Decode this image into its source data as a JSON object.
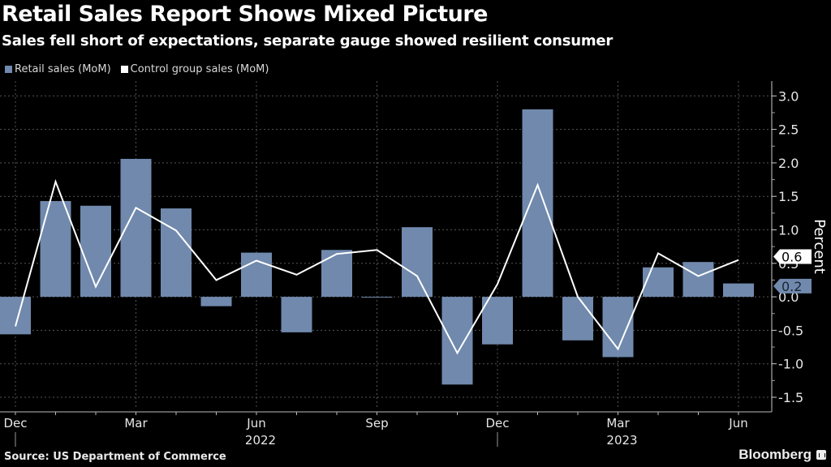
{
  "header": {
    "title": "Retail Sales Report Shows Mixed Picture",
    "subtitle": "Sales fell short of expectations, separate gauge showed resilient consumer"
  },
  "legend": [
    {
      "label": "Retail sales (MoM)",
      "color": "#7089ad"
    },
    {
      "label": "Control group sales (MoM)",
      "color": "#ffffff"
    }
  ],
  "footer": {
    "source": "Source: US Department of Commerce",
    "brand": "Bloomberg"
  },
  "chart_data": {
    "type": "bar",
    "title": "Retail Sales Report Shows Mixed Picture",
    "subtitle": "Sales fell short of expectations, separate gauge showed resilient consumer",
    "xlabel": "",
    "ylabel": "Percent",
    "ylim": [
      -1.5,
      3.0
    ],
    "yticks": [
      "3.0",
      "2.5",
      "2.0",
      "1.5",
      "1.0",
      "0.5",
      "0.0",
      "-0.5",
      "-1.0",
      "-1.5"
    ],
    "ytick_values": [
      3.0,
      2.5,
      2.0,
      1.5,
      1.0,
      0.5,
      0.0,
      -0.5,
      -1.0,
      -1.5
    ],
    "grid": true,
    "legend_position": "top-left",
    "categories": [
      "Dec 2021",
      "Jan 2022",
      "Feb 2022",
      "Mar 2022",
      "Apr 2022",
      "May 2022",
      "Jun 2022",
      "Jul 2022",
      "Aug 2022",
      "Sep 2022",
      "Oct 2022",
      "Nov 2022",
      "Dec 2022",
      "Jan 2023",
      "Feb 2023",
      "Mar 2023",
      "Apr 2023",
      "May 2023",
      "Jun 2023"
    ],
    "xtick_labels": [
      {
        "index": 0,
        "label": "Dec",
        "year": ""
      },
      {
        "index": 3,
        "label": "Mar",
        "year": ""
      },
      {
        "index": 6,
        "label": "Jun",
        "year": "2022"
      },
      {
        "index": 9,
        "label": "Sep",
        "year": ""
      },
      {
        "index": 12,
        "label": "Dec",
        "year": ""
      },
      {
        "index": 15,
        "label": "Mar",
        "year": "2023"
      },
      {
        "index": 18,
        "label": "Jun",
        "year": ""
      }
    ],
    "year_dividers": [
      0,
      12
    ],
    "series": [
      {
        "name": "Retail sales (MoM)",
        "type": "bar",
        "color": "#7089ad",
        "values": [
          -0.56,
          1.43,
          1.36,
          2.06,
          1.32,
          -0.14,
          0.66,
          -0.53,
          0.7,
          -0.01,
          1.04,
          -1.31,
          -0.71,
          2.8,
          -0.65,
          -0.9,
          0.44,
          0.52,
          0.2
        ],
        "end_label": "0.2"
      },
      {
        "name": "Control group sales (MoM)",
        "type": "line",
        "color": "#ffffff",
        "values": [
          -0.44,
          1.72,
          0.15,
          1.33,
          0.99,
          0.25,
          0.54,
          0.33,
          0.64,
          0.7,
          0.31,
          -0.84,
          0.19,
          1.67,
          0.0,
          -0.78,
          0.65,
          0.31,
          0.55
        ],
        "end_label": "0.6"
      }
    ]
  }
}
